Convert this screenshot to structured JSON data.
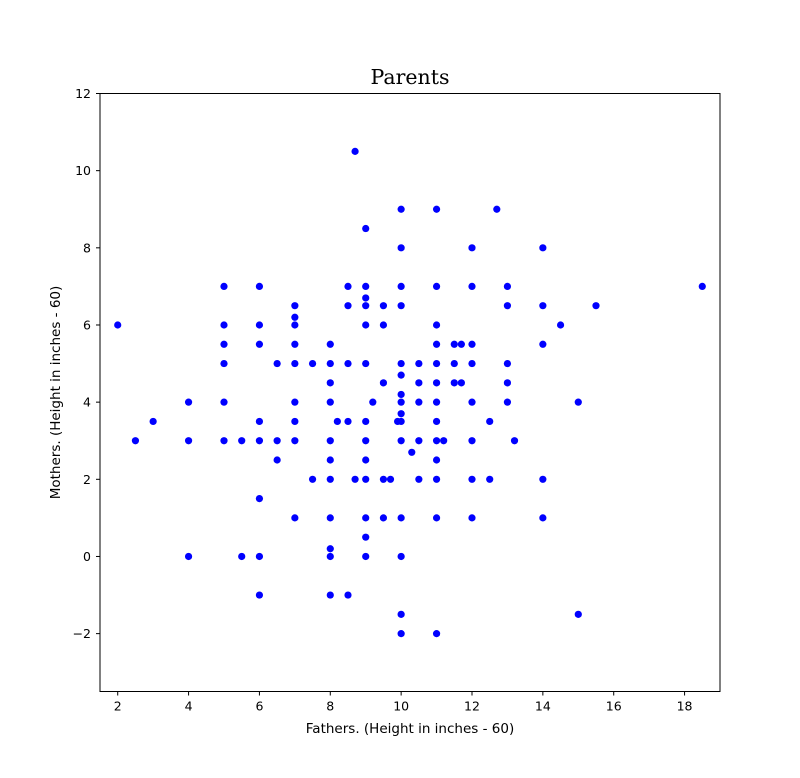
{
  "chart_data": {
    "type": "scatter",
    "title": "Parents",
    "xlabel": "Fathers. (Height in inches - 60)",
    "ylabel": "Mothers. (Height in inches - 60)",
    "xlim": [
      1.5,
      19.0
    ],
    "ylim": [
      -3.5,
      12
    ],
    "xticks": [
      2,
      4,
      6,
      8,
      10,
      12,
      14,
      16,
      18
    ],
    "yticks": [
      -2,
      0,
      2,
      4,
      6,
      8,
      10,
      12
    ],
    "grid": false,
    "marker_color": "#0000ff",
    "series": [
      {
        "points": [
          [
            2,
            6
          ],
          [
            2.5,
            3
          ],
          [
            3,
            3.5
          ],
          [
            4,
            4
          ],
          [
            4,
            3
          ],
          [
            4,
            0
          ],
          [
            5,
            7
          ],
          [
            5,
            6
          ],
          [
            5,
            5.5
          ],
          [
            5,
            5
          ],
          [
            5,
            4
          ],
          [
            5,
            3
          ],
          [
            5.5,
            3
          ],
          [
            5.5,
            0
          ],
          [
            6,
            7
          ],
          [
            6,
            6
          ],
          [
            6,
            5.5
          ],
          [
            6,
            3.5
          ],
          [
            6,
            3
          ],
          [
            6,
            1.5
          ],
          [
            6,
            0
          ],
          [
            6,
            -1
          ],
          [
            6.5,
            5
          ],
          [
            6.5,
            3
          ],
          [
            6.5,
            2.5
          ],
          [
            7,
            6.5
          ],
          [
            7,
            6.2
          ],
          [
            7,
            6
          ],
          [
            7,
            5.5
          ],
          [
            7,
            5
          ],
          [
            7,
            4
          ],
          [
            7,
            3.5
          ],
          [
            7,
            3
          ],
          [
            7,
            1
          ],
          [
            7.5,
            5
          ],
          [
            7.5,
            2
          ],
          [
            8,
            5.5
          ],
          [
            8,
            5
          ],
          [
            8,
            4.5
          ],
          [
            8,
            4
          ],
          [
            8,
            3
          ],
          [
            8,
            2.5
          ],
          [
            8,
            2
          ],
          [
            8,
            1
          ],
          [
            8,
            0.2
          ],
          [
            8,
            0
          ],
          [
            8,
            -1
          ],
          [
            8.2,
            3.5
          ],
          [
            8.5,
            7
          ],
          [
            8.5,
            6.5
          ],
          [
            8.5,
            5
          ],
          [
            8.5,
            3.5
          ],
          [
            8.5,
            -1
          ],
          [
            8.7,
            10.5
          ],
          [
            8.7,
            2
          ],
          [
            9,
            8.5
          ],
          [
            9,
            7
          ],
          [
            9,
            6.7
          ],
          [
            9,
            6.5
          ],
          [
            9,
            6
          ],
          [
            9,
            5
          ],
          [
            9,
            3.5
          ],
          [
            9,
            3
          ],
          [
            9,
            2.5
          ],
          [
            9,
            2
          ],
          [
            9,
            1
          ],
          [
            9,
            0.5
          ],
          [
            9,
            0
          ],
          [
            9.2,
            4
          ],
          [
            9.5,
            6.5
          ],
          [
            9.5,
            6
          ],
          [
            9.5,
            4.5
          ],
          [
            9.5,
            2
          ],
          [
            9.5,
            1
          ],
          [
            9.7,
            2
          ],
          [
            9.9,
            3.5
          ],
          [
            10,
            9
          ],
          [
            10,
            8
          ],
          [
            10,
            7
          ],
          [
            10,
            6.5
          ],
          [
            10,
            5
          ],
          [
            10,
            4.7
          ],
          [
            10,
            4.2
          ],
          [
            10,
            4
          ],
          [
            10,
            3.7
          ],
          [
            10,
            3.5
          ],
          [
            10,
            3
          ],
          [
            10,
            1
          ],
          [
            10,
            0
          ],
          [
            10,
            -1.5
          ],
          [
            10,
            -2
          ],
          [
            10.3,
            2.7
          ],
          [
            10.5,
            5
          ],
          [
            10.5,
            4.5
          ],
          [
            10.5,
            4
          ],
          [
            10.5,
            3
          ],
          [
            10.5,
            2
          ],
          [
            11,
            9
          ],
          [
            11,
            7
          ],
          [
            11,
            6
          ],
          [
            11,
            5.5
          ],
          [
            11,
            5
          ],
          [
            11,
            4.5
          ],
          [
            11,
            4
          ],
          [
            11,
            3.5
          ],
          [
            11,
            3
          ],
          [
            11,
            2.5
          ],
          [
            11,
            2
          ],
          [
            11,
            1
          ],
          [
            11,
            -2
          ],
          [
            11.2,
            3
          ],
          [
            11.5,
            5.5
          ],
          [
            11.5,
            5
          ],
          [
            11.5,
            4.5
          ],
          [
            11.7,
            5.5
          ],
          [
            11.7,
            4.5
          ],
          [
            12,
            8
          ],
          [
            12,
            7
          ],
          [
            12,
            5.5
          ],
          [
            12,
            5
          ],
          [
            12,
            4
          ],
          [
            12,
            3
          ],
          [
            12,
            2
          ],
          [
            12,
            1
          ],
          [
            12.5,
            3.5
          ],
          [
            12.5,
            2
          ],
          [
            12.7,
            9
          ],
          [
            13,
            7
          ],
          [
            13,
            6.5
          ],
          [
            13,
            5
          ],
          [
            13,
            4.5
          ],
          [
            13,
            4
          ],
          [
            13.2,
            3
          ],
          [
            14,
            8
          ],
          [
            14,
            6.5
          ],
          [
            14,
            5.5
          ],
          [
            14,
            2
          ],
          [
            14,
            1
          ],
          [
            14.5,
            6
          ],
          [
            15,
            4
          ],
          [
            15,
            -1.5
          ],
          [
            15.5,
            6.5
          ],
          [
            18.5,
            7
          ]
        ]
      }
    ]
  }
}
